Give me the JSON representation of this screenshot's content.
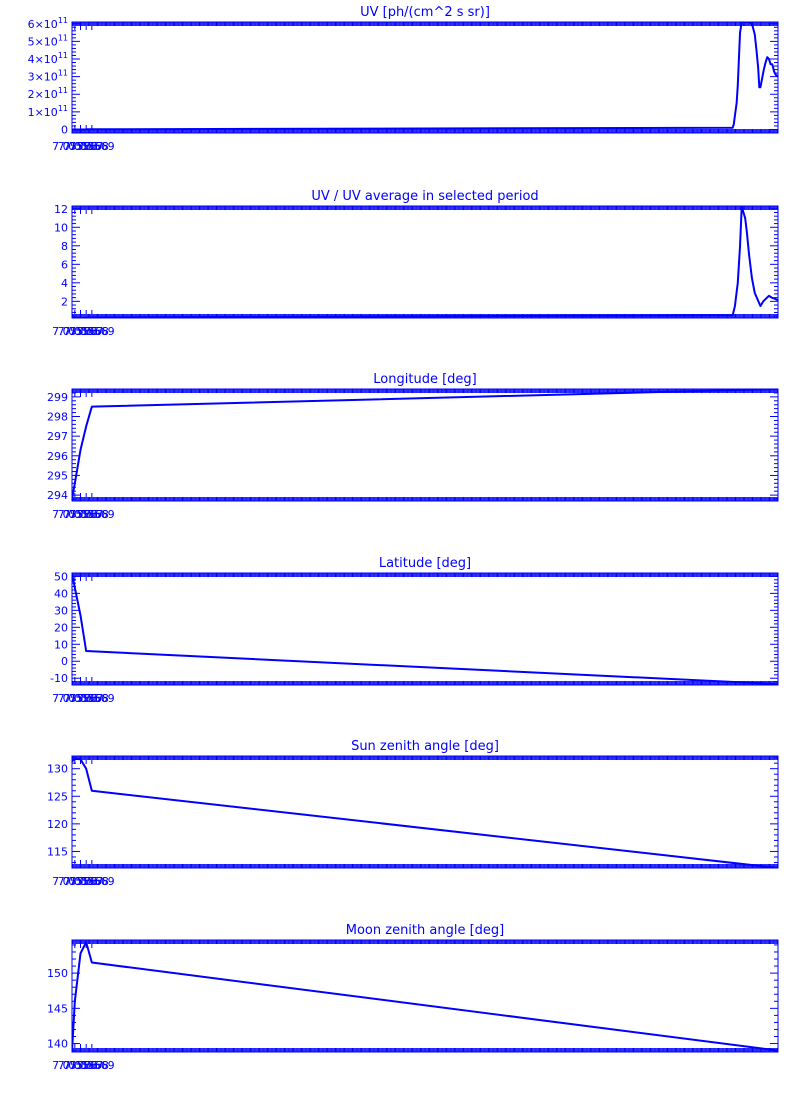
{
  "colors": {
    "line": "#0000ff",
    "axes": "#0000ff",
    "background": "#ffffff"
  },
  "chart_data": [
    {
      "type": "line",
      "title": "UV [ph/(cm^2 s sr)]",
      "xlabel": "",
      "ylabel": "",
      "xlim": [
        7.055655,
        7.056901
      ],
      "ylim": [
        -20000000000.0,
        610000000000.0
      ],
      "yscale_power": 11,
      "xticks": [
        {
          "value": 7.05566,
          "label": "7.05566"
        },
        {
          "value": 7.05567,
          "label": "7.05567"
        },
        {
          "value": 7.05568,
          "label": "7.05568"
        },
        {
          "value": 7.05569,
          "label": "7.05569"
        }
      ],
      "yticks": [
        {
          "value": 0,
          "label": "0",
          "mant": "",
          "exp": ""
        },
        {
          "value": 100000000000.0,
          "label": "1×10¹¹",
          "mant": "1×10",
          "exp": "11"
        },
        {
          "value": 200000000000.0,
          "label": "2×10¹¹",
          "mant": "2×10",
          "exp": "11"
        },
        {
          "value": 300000000000.0,
          "label": "3×10¹¹",
          "mant": "3×10",
          "exp": "11"
        },
        {
          "value": 400000000000.0,
          "label": "4×10¹¹",
          "mant": "4×10",
          "exp": "11"
        },
        {
          "value": 500000000000.0,
          "label": "5×10¹¹",
          "mant": "5×10",
          "exp": "11"
        },
        {
          "value": 600000000000.0,
          "label": "6×10¹¹",
          "mant": "6×10",
          "exp": "11"
        }
      ],
      "series": [
        {
          "x": [
            7.055655,
            7.05567,
            7.05568,
            7.0556815,
            7.056821,
            7.056823,
            7.056825,
            7.056828,
            7.05683,
            7.056832,
            7.056834,
            7.056837,
            7.05684,
            7.056845,
            7.05685,
            7.056855,
            7.05686,
            7.056863,
            7.056866,
            7.056868,
            7.05687,
            7.056873,
            7.056876,
            7.056879,
            7.056882,
            7.056885,
            7.056888,
            7.056891,
            7.056894,
            7.056897,
            7.056901
          ],
          "y": [
            0,
            0,
            0,
            1000000000.0,
            10000000000.0,
            30000000000.0,
            80000000000.0,
            150000000000.0,
            250000000000.0,
            400000000000.0,
            550000000000.0,
            610000000000.0,
            610000000000.0,
            610000000000.0,
            610000000000.0,
            600000000000.0,
            540000000000.0,
            450000000000.0,
            350000000000.0,
            240000000000.0,
            240000000000.0,
            290000000000.0,
            340000000000.0,
            380000000000.0,
            410000000000.0,
            400000000000.0,
            370000000000.0,
            370000000000.0,
            330000000000.0,
            310000000000.0,
            300000000000.0
          ]
        }
      ]
    },
    {
      "type": "line",
      "title": "UV / UV average in selected period",
      "xlabel": "",
      "ylabel": "",
      "xlim": [
        7.055655,
        7.056901
      ],
      "ylim": [
        0.2,
        12.3
      ],
      "xticks": [
        {
          "value": 7.05566,
          "label": "7.05566"
        },
        {
          "value": 7.05567,
          "label": "7.05567"
        },
        {
          "value": 7.05568,
          "label": "7.05568"
        },
        {
          "value": 7.05569,
          "label": "7.05569"
        }
      ],
      "yticks": [
        {
          "value": 2,
          "label": "2"
        },
        {
          "value": 4,
          "label": "4"
        },
        {
          "value": 6,
          "label": "6"
        },
        {
          "value": 8,
          "label": "8"
        },
        {
          "value": 10,
          "label": "10"
        },
        {
          "value": 12,
          "label": "12"
        }
      ],
      "series": [
        {
          "x": [
            7.055655,
            7.05567,
            7.05568,
            7.0556815,
            7.056821,
            7.056825,
            7.05683,
            7.056834,
            7.056837,
            7.05684,
            7.056843,
            7.056846,
            7.05685,
            7.056855,
            7.05686,
            7.056865,
            7.05687,
            7.056875,
            7.05688,
            7.056885,
            7.05689,
            7.056895,
            7.056901
          ],
          "y": [
            0.2,
            0.2,
            0.2,
            0.25,
            0.5,
            1.5,
            4.0,
            8.0,
            12.3,
            11.6,
            11.0,
            9.5,
            7.0,
            4.5,
            2.9,
            2.2,
            1.5,
            2.0,
            2.3,
            2.6,
            2.4,
            2.3,
            2.1
          ]
        }
      ]
    },
    {
      "type": "line",
      "title": "Longitude [deg]",
      "xlabel": "",
      "ylabel": "",
      "xlim": [
        7.055655,
        7.056901
      ],
      "ylim": [
        293.7,
        299.4
      ],
      "xticks": [
        {
          "value": 7.05566,
          "label": "7.05566"
        },
        {
          "value": 7.05567,
          "label": "7.05567"
        },
        {
          "value": 7.05568,
          "label": "7.05568"
        },
        {
          "value": 7.05569,
          "label": "7.05569"
        }
      ],
      "yticks": [
        {
          "value": 294,
          "label": "294"
        },
        {
          "value": 295,
          "label": "295"
        },
        {
          "value": 296,
          "label": "296"
        },
        {
          "value": 297,
          "label": "297"
        },
        {
          "value": 298,
          "label": "298"
        },
        {
          "value": 299,
          "label": "299"
        }
      ],
      "series": [
        {
          "x": [
            7.055655,
            7.05566,
            7.05567,
            7.05568,
            7.05569,
            7.056901
          ],
          "y": [
            293.8,
            294.6,
            296.3,
            297.5,
            298.5,
            299.4
          ]
        }
      ]
    },
    {
      "type": "line",
      "title": "Latitude [deg]",
      "xlabel": "",
      "ylabel": "",
      "xlim": [
        7.055655,
        7.056901
      ],
      "ylim": [
        -14,
        52
      ],
      "xticks": [
        {
          "value": 7.05566,
          "label": "7.05566"
        },
        {
          "value": 7.05567,
          "label": "7.05567"
        },
        {
          "value": 7.05568,
          "label": "7.05568"
        },
        {
          "value": 7.05569,
          "label": "7.05569"
        }
      ],
      "yticks": [
        {
          "value": -10,
          "label": "-10"
        },
        {
          "value": 0,
          "label": "0"
        },
        {
          "value": 10,
          "label": "10"
        },
        {
          "value": 20,
          "label": "20"
        },
        {
          "value": 30,
          "label": "30"
        },
        {
          "value": 40,
          "label": "40"
        },
        {
          "value": 50,
          "label": "50"
        }
      ],
      "series": [
        {
          "x": [
            7.055655,
            7.05567,
            7.05568,
            7.056901
          ],
          "y": [
            51.5,
            27.0,
            6.0,
            -13.5
          ]
        }
      ]
    },
    {
      "type": "line",
      "title": "Sun zenith angle [deg]",
      "xlabel": "",
      "ylabel": "",
      "xlim": [
        7.055655,
        7.056901
      ],
      "ylim": [
        112,
        132.3
      ],
      "xticks": [
        {
          "value": 7.05566,
          "label": "7.05566"
        },
        {
          "value": 7.05567,
          "label": "7.05567"
        },
        {
          "value": 7.05568,
          "label": "7.05568"
        },
        {
          "value": 7.05569,
          "label": "7.05569"
        }
      ],
      "yticks": [
        {
          "value": 115,
          "label": "115"
        },
        {
          "value": 120,
          "label": "120"
        },
        {
          "value": 125,
          "label": "125"
        },
        {
          "value": 130,
          "label": "130"
        }
      ],
      "series": [
        {
          "x": [
            7.055655,
            7.05566,
            7.05567,
            7.05568,
            7.05569,
            7.056901
          ],
          "y": [
            131.3,
            131.8,
            131.7,
            130.0,
            126.0,
            112.0
          ]
        }
      ]
    },
    {
      "type": "line",
      "title": "Moon zenith angle [deg]",
      "xlabel": "",
      "ylabel": "",
      "xlim": [
        7.055655,
        7.056901
      ],
      "ylim": [
        138.8,
        154.7
      ],
      "xticks": [
        {
          "value": 7.05566,
          "label": "7.05566"
        },
        {
          "value": 7.05567,
          "label": "7.05567"
        },
        {
          "value": 7.05568,
          "label": "7.05568"
        },
        {
          "value": 7.05569,
          "label": "7.05569"
        }
      ],
      "yticks": [
        {
          "value": 140,
          "label": "140"
        },
        {
          "value": 145,
          "label": "145"
        },
        {
          "value": 150,
          "label": "150"
        }
      ],
      "series": [
        {
          "x": [
            7.055655,
            7.05566,
            7.05567,
            7.05568,
            7.05569,
            7.056901
          ],
          "y": [
            138.9,
            146.0,
            152.8,
            154.4,
            151.5,
            139.0
          ]
        }
      ]
    }
  ]
}
